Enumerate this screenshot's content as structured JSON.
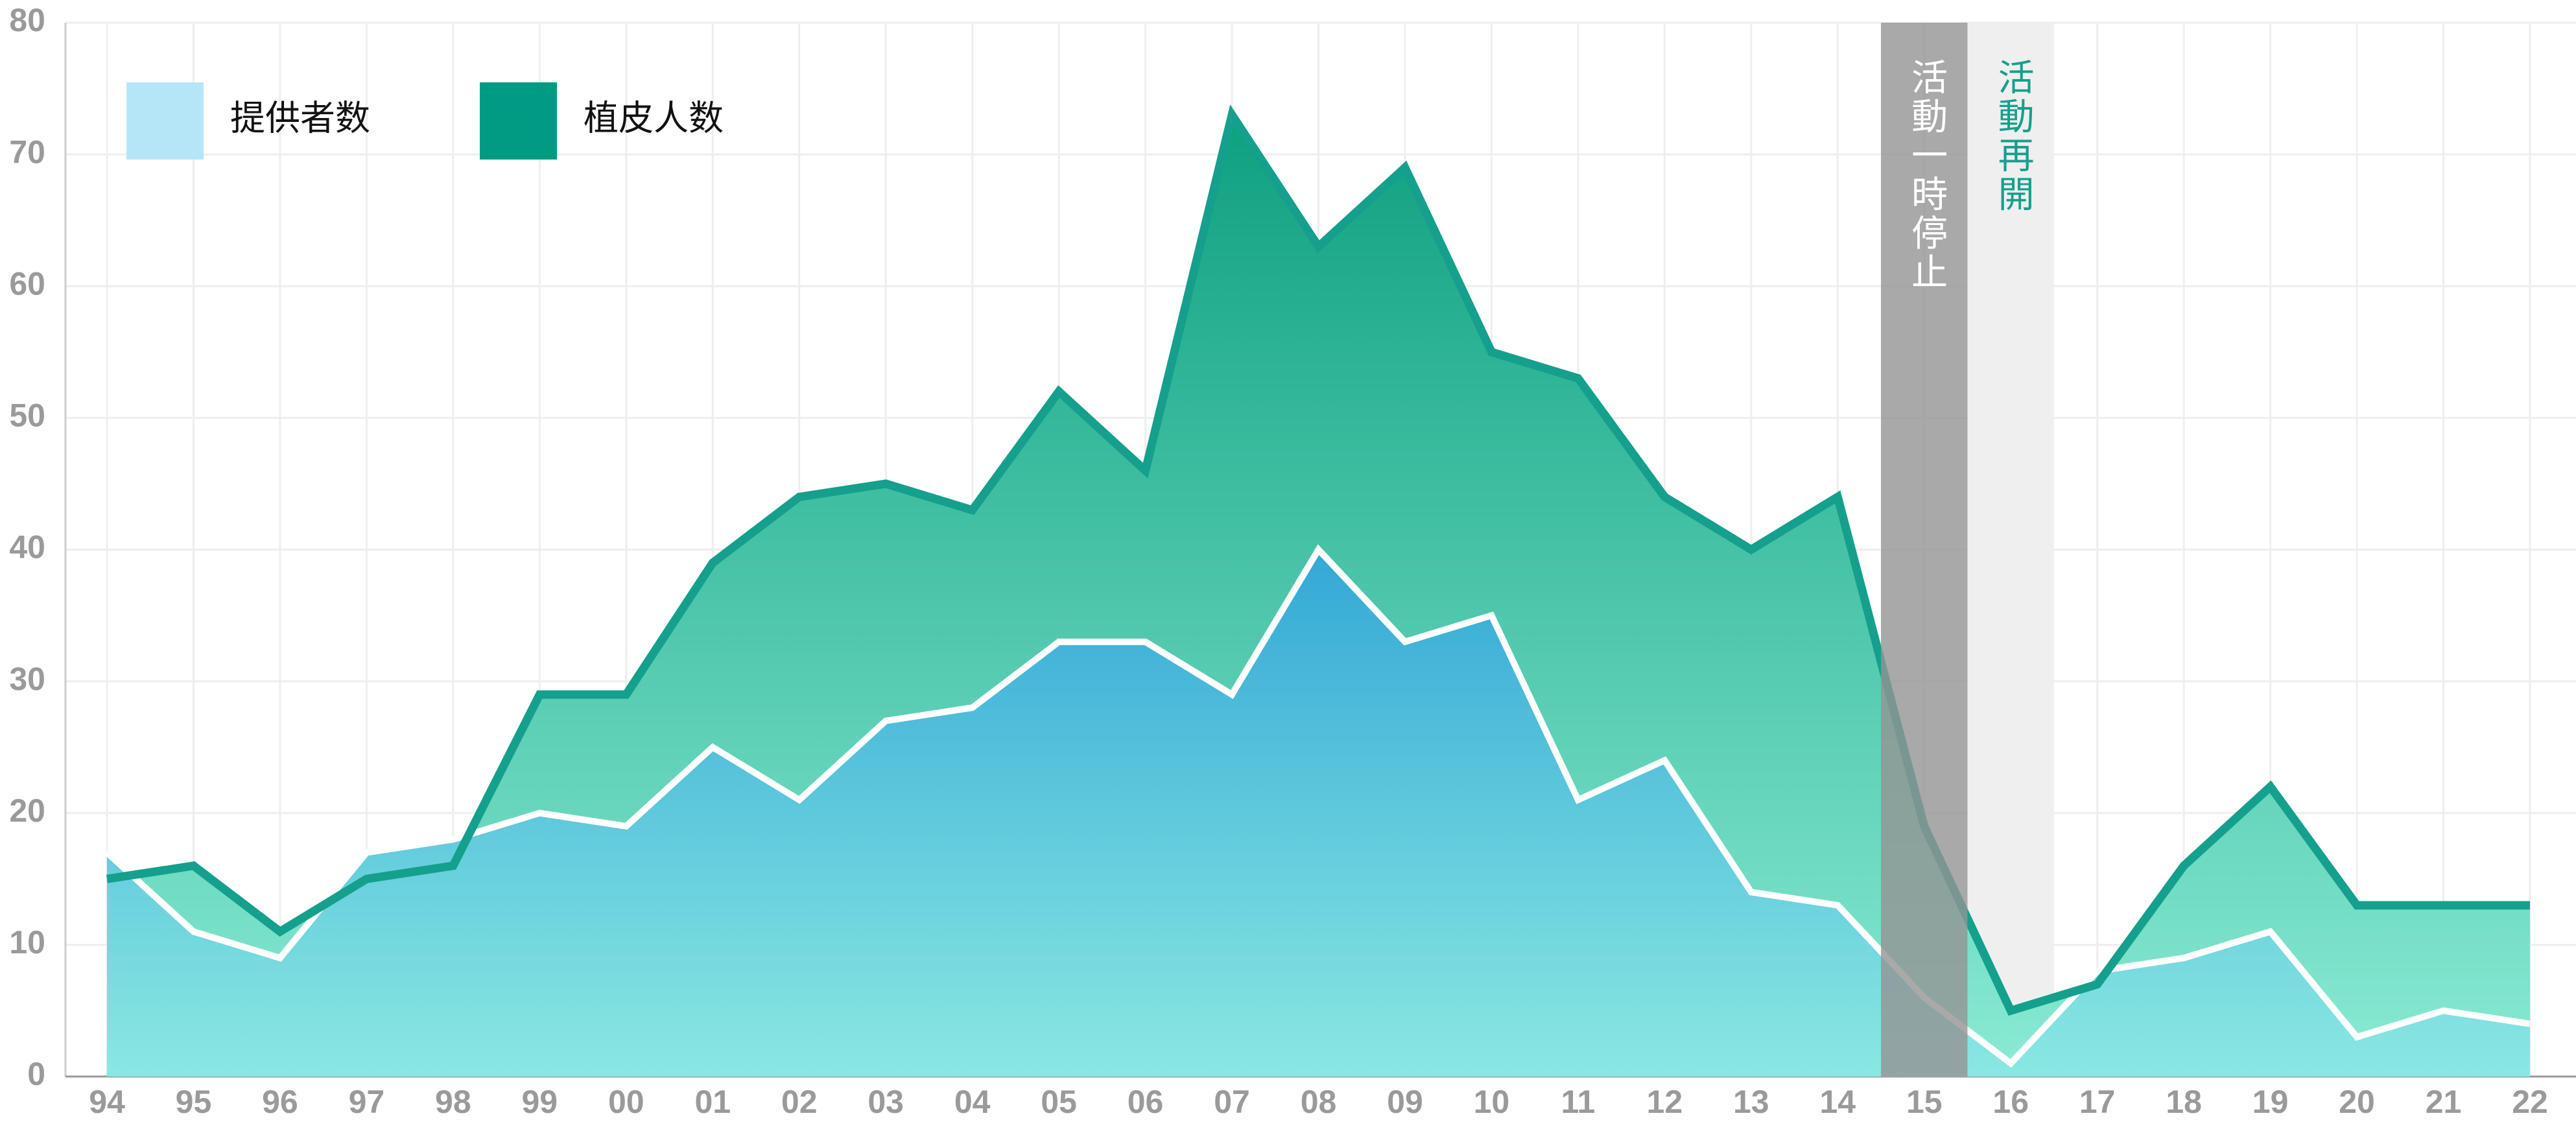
{
  "chart_data": {
    "type": "area",
    "categories": [
      "94",
      "95",
      "96",
      "97",
      "98",
      "99",
      "00",
      "01",
      "02",
      "03",
      "04",
      "05",
      "06",
      "07",
      "08",
      "09",
      "10",
      "11",
      "12",
      "13",
      "14",
      "15",
      "16",
      "17",
      "18",
      "19",
      "20",
      "21",
      "22"
    ],
    "series": [
      {
        "name": "植皮人数",
        "color": "#14a08c",
        "values": [
          15,
          16,
          11,
          15,
          16,
          29,
          29,
          39,
          44,
          45,
          43,
          52,
          46,
          73,
          63,
          69,
          55,
          53,
          44,
          40,
          44,
          19,
          5,
          7,
          16,
          22,
          13,
          13,
          13
        ]
      },
      {
        "name": "提供者数",
        "color": "#ffffff",
        "values": [
          17,
          11,
          9,
          17,
          18,
          20,
          19,
          25,
          21,
          27,
          28,
          33,
          33,
          29,
          40,
          33,
          35,
          21,
          24,
          14,
          13,
          6,
          1,
          8,
          9,
          11,
          3,
          5,
          4
        ]
      }
    ],
    "ylim": [
      0,
      80
    ],
    "yticks": [
      0,
      10,
      20,
      30,
      40,
      50,
      60,
      70,
      80
    ],
    "grid": true,
    "legend": "top-left",
    "annotations": [
      {
        "text": "活動一時停止",
        "x": "15",
        "color": "#949494",
        "text_color": "#ffffff"
      },
      {
        "text": "活動再開",
        "x": "16",
        "color": "#efefef",
        "text_color": "#14a08c"
      }
    ]
  }
}
